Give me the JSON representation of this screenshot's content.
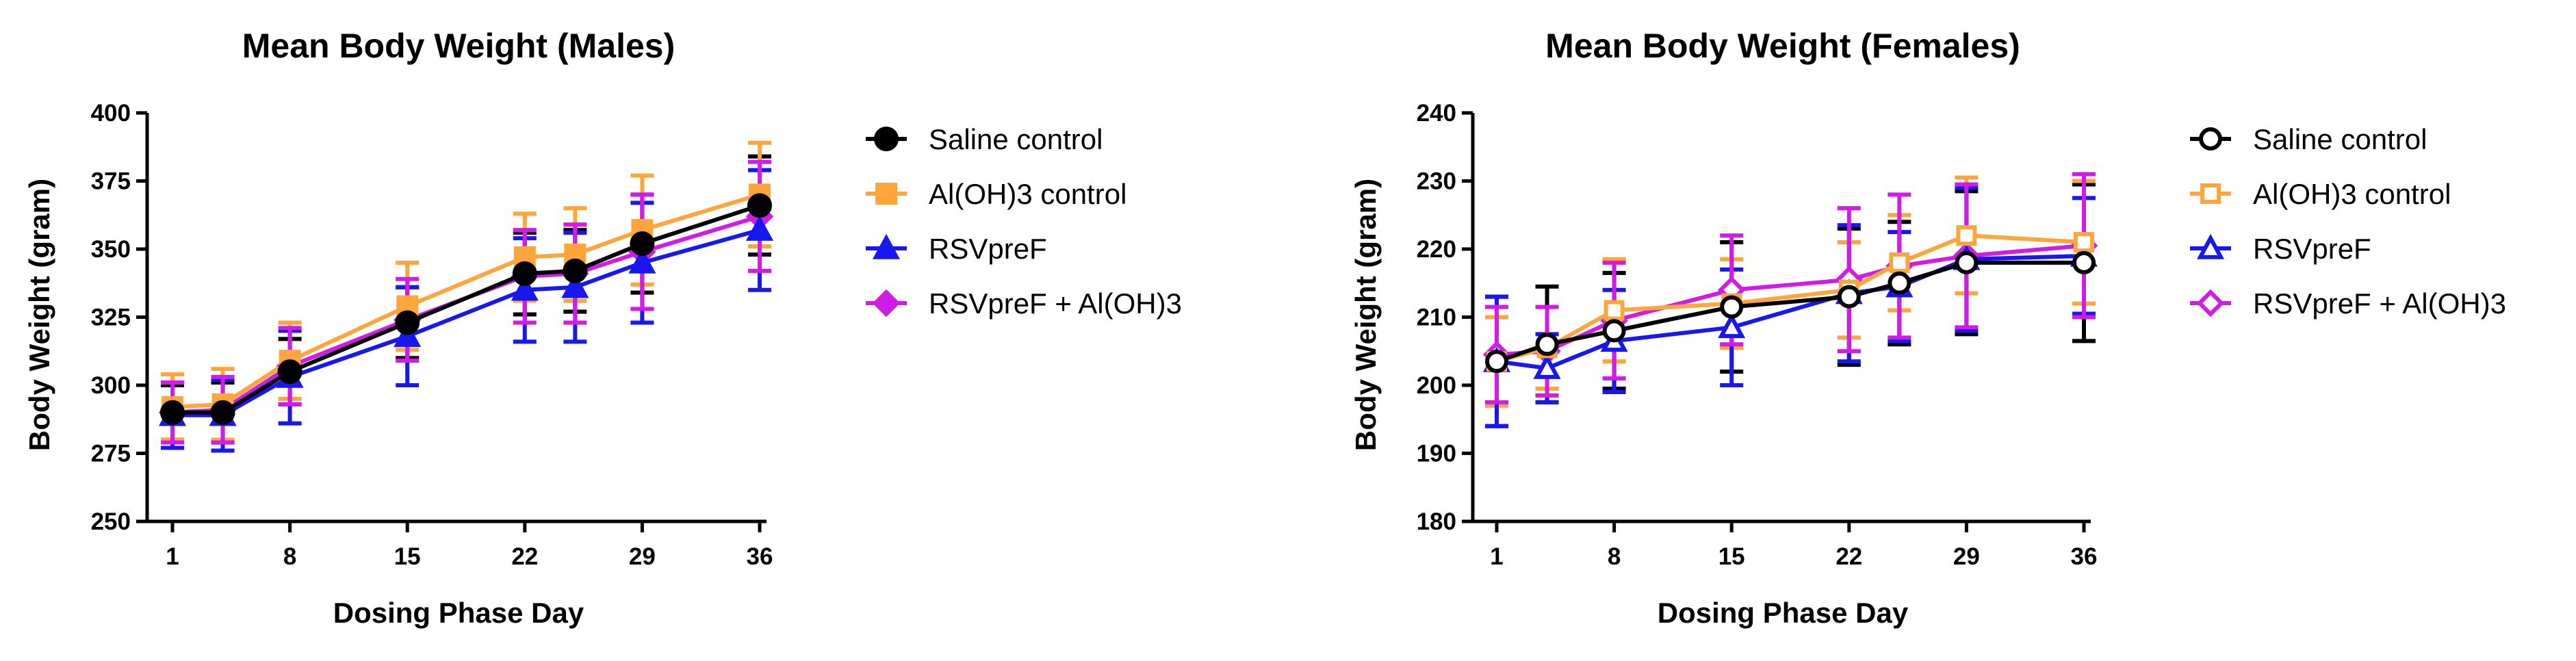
{
  "chart_data": [
    {
      "type": "line",
      "title": "Mean Body Weight (Males)",
      "xlabel": "Dosing Phase Day",
      "ylabel": "Body Weight (gram)",
      "x": [
        1,
        4,
        8,
        15,
        22,
        25,
        29,
        36
      ],
      "xticks": [
        1,
        8,
        15,
        22,
        29,
        36
      ],
      "xlim": [
        0,
        37
      ],
      "ylim": [
        250,
        400
      ],
      "yticks": [
        250,
        275,
        300,
        325,
        350,
        375,
        400
      ],
      "legend": "right",
      "series": [
        {
          "name": "Saline control",
          "color": "#000000",
          "marker": "circle",
          "filled": true,
          "values": [
            290,
            290,
            305,
            323,
            341,
            342,
            352,
            366
          ],
          "errors": [
            10,
            11,
            12,
            13,
            15,
            15,
            18,
            18
          ]
        },
        {
          "name": "Al(OH)3 control",
          "color": "#ffa53b",
          "marker": "square",
          "filled": true,
          "values": [
            292,
            293,
            309,
            329,
            347,
            348,
            357,
            370
          ],
          "errors": [
            12,
            13,
            14,
            16,
            16,
            17,
            20,
            19
          ]
        },
        {
          "name": "RSVpreF",
          "color": "#1717ee",
          "marker": "triangle",
          "filled": true,
          "values": [
            289,
            289,
            303,
            318,
            335,
            336,
            345,
            357
          ],
          "errors": [
            12,
            13,
            17,
            18,
            19,
            20,
            22,
            22
          ]
        },
        {
          "name": "RSVpreF + Al(OH)3",
          "color": "#d11be6",
          "marker": "diamond",
          "filled": true,
          "values": [
            290,
            291,
            307,
            324,
            340,
            341,
            349,
            362
          ],
          "errors": [
            11,
            12,
            14,
            15,
            17,
            18,
            21,
            20
          ]
        }
      ]
    },
    {
      "type": "line",
      "title": "Mean Body Weight (Females)",
      "xlabel": "Dosing Phase Day",
      "ylabel": "Body Weight (gram)",
      "x": [
        1,
        4,
        8,
        15,
        22,
        25,
        29,
        36
      ],
      "xticks": [
        1,
        8,
        15,
        22,
        29,
        36
      ],
      "xlim": [
        0,
        37
      ],
      "ylim": [
        180,
        240
      ],
      "yticks": [
        180,
        190,
        200,
        210,
        220,
        230,
        240
      ],
      "legend": "right",
      "series": [
        {
          "name": "Saline control",
          "color": "#000000",
          "marker": "circle",
          "filled": false,
          "values": [
            203.5,
            206,
            208,
            211.5,
            213,
            215,
            218,
            218
          ],
          "errors": [
            9.5,
            8.5,
            8.5,
            9.5,
            10,
            9,
            10.5,
            11.5
          ]
        },
        {
          "name": "Al(OH)3 control",
          "color": "#ffa53b",
          "marker": "square",
          "filled": false,
          "values": [
            203.5,
            205.5,
            211,
            212,
            214,
            218,
            222,
            221
          ],
          "errors": [
            6.5,
            6,
            7.5,
            6.5,
            7,
            7,
            8.5,
            9
          ]
        },
        {
          "name": "RSVpreF",
          "color": "#1717ee",
          "marker": "triangle",
          "filled": false,
          "values": [
            203.5,
            202.5,
            206.5,
            208.5,
            213.5,
            214.5,
            218.5,
            219
          ],
          "errors": [
            9.5,
            5,
            7.5,
            8.5,
            10,
            8,
            10.5,
            8.5
          ]
        },
        {
          "name": "RSVpreF + Al(OH)3",
          "color": "#d11be6",
          "marker": "diamond",
          "filled": false,
          "values": [
            204.5,
            205,
            209.5,
            214,
            215.5,
            217.5,
            219,
            220.5
          ],
          "errors": [
            7,
            6.5,
            8.5,
            8,
            10.5,
            10.5,
            10.5,
            10.5
          ]
        }
      ]
    }
  ]
}
